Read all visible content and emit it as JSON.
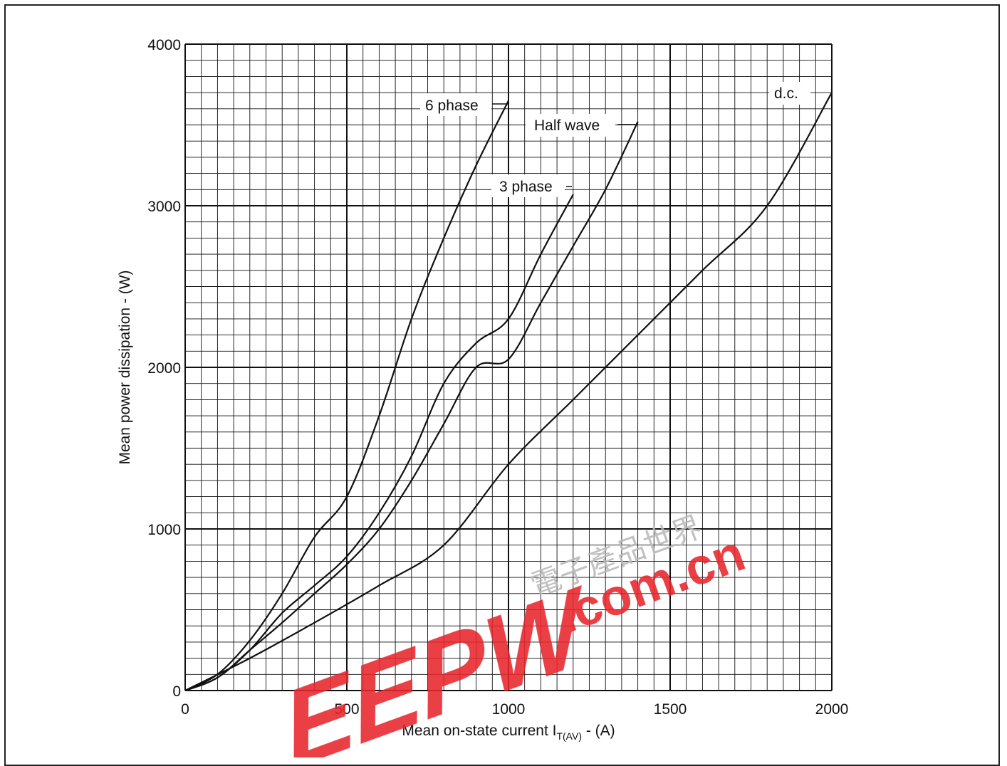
{
  "chart_data": {
    "type": "line",
    "title": "",
    "xlabel": "Mean on-state current I",
    "xlabel_subscript": "T(AV)",
    "xlabel_suffix": " - (A)",
    "ylabel": "Mean power dissipation - (W)",
    "xlim": [
      0,
      2000
    ],
    "ylim": [
      0,
      4000
    ],
    "x_ticks": [
      "0",
      "500",
      "1000",
      "1500",
      "2000"
    ],
    "y_ticks": [
      "0",
      "1000",
      "2000",
      "3000",
      "4000"
    ],
    "grid": true,
    "series": [
      {
        "name": "6 phase",
        "points": [
          [
            0,
            0
          ],
          [
            100,
            100
          ],
          [
            200,
            310
          ],
          [
            300,
            600
          ],
          [
            400,
            950
          ],
          [
            500,
            1200
          ],
          [
            600,
            1700
          ],
          [
            700,
            2300
          ],
          [
            800,
            2800
          ],
          [
            900,
            3250
          ],
          [
            1000,
            3650
          ]
        ]
      },
      {
        "name": "3 phase",
        "points": [
          [
            0,
            0
          ],
          [
            100,
            80
          ],
          [
            200,
            250
          ],
          [
            300,
            480
          ],
          [
            400,
            650
          ],
          [
            500,
            830
          ],
          [
            600,
            1100
          ],
          [
            700,
            1450
          ],
          [
            800,
            1900
          ],
          [
            900,
            2150
          ],
          [
            1000,
            2300
          ],
          [
            1100,
            2700
          ],
          [
            1200,
            3070
          ]
        ]
      },
      {
        "name": "Half wave",
        "points": [
          [
            0,
            0
          ],
          [
            100,
            80
          ],
          [
            200,
            250
          ],
          [
            300,
            420
          ],
          [
            400,
            600
          ],
          [
            500,
            780
          ],
          [
            600,
            1000
          ],
          [
            700,
            1300
          ],
          [
            800,
            1650
          ],
          [
            900,
            2000
          ],
          [
            1000,
            2050
          ],
          [
            1100,
            2400
          ],
          [
            1200,
            2750
          ],
          [
            1300,
            3100
          ],
          [
            1400,
            3520
          ]
        ]
      },
      {
        "name": "d.c.",
        "points": [
          [
            0,
            0
          ],
          [
            200,
            200
          ],
          [
            400,
            420
          ],
          [
            600,
            650
          ],
          [
            800,
            900
          ],
          [
            1000,
            1400
          ],
          [
            1200,
            1800
          ],
          [
            1400,
            2200
          ],
          [
            1600,
            2600
          ],
          [
            1800,
            3000
          ],
          [
            2000,
            3700
          ]
        ]
      }
    ],
    "labels": {
      "six_phase": "6 phase",
      "half_wave": "Half wave",
      "three_phase": "3 phase",
      "dc": "d.c."
    }
  },
  "watermark": {
    "logo": "EEPW",
    "domain": ".com.cn",
    "tagline": "電子產品世界"
  }
}
